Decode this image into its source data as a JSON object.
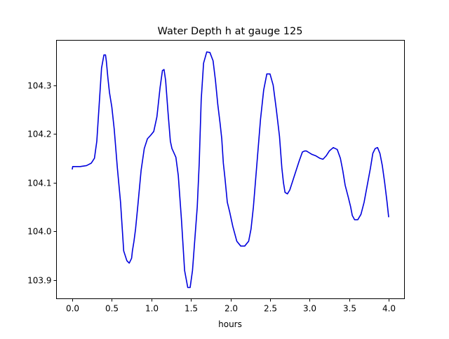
{
  "chart_data": {
    "type": "line",
    "title": "Water Depth h at gauge 125",
    "xlabel": "hours",
    "ylabel": "",
    "xlim": [
      -0.2,
      4.2
    ],
    "ylim": [
      103.862,
      104.392
    ],
    "xticks": [
      0.0,
      0.5,
      1.0,
      1.5,
      2.0,
      2.5,
      3.0,
      3.5,
      4.0
    ],
    "xtick_labels": [
      "0.0",
      "0.5",
      "1.0",
      "1.5",
      "2.0",
      "2.5",
      "3.0",
      "3.5",
      "4.0"
    ],
    "yticks": [
      103.9,
      104.0,
      104.1,
      104.2,
      104.3
    ],
    "ytick_labels": [
      "103.9",
      "104.0",
      "104.1",
      "104.2",
      "104.3"
    ],
    "grid": false,
    "legend": "none",
    "series": [
      {
        "color": "#0000dd",
        "x": [
          0.0,
          0.005,
          0.1,
          0.18,
          0.24,
          0.28,
          0.31,
          0.34,
          0.37,
          0.4,
          0.42,
          0.43,
          0.45,
          0.47,
          0.5,
          0.53,
          0.57,
          0.61,
          0.65,
          0.69,
          0.72,
          0.75,
          0.76,
          0.78,
          0.8,
          0.83,
          0.87,
          0.91,
          0.95,
          0.99,
          1.03,
          1.07,
          1.11,
          1.14,
          1.16,
          1.18,
          1.21,
          1.24,
          1.26,
          1.28,
          1.31,
          1.34,
          1.38,
          1.42,
          1.46,
          1.49,
          1.52,
          1.55,
          1.58,
          1.605,
          1.63,
          1.66,
          1.7,
          1.74,
          1.78,
          1.81,
          1.84,
          1.87,
          1.89,
          1.91,
          1.93,
          1.96,
          1.99,
          2.03,
          2.08,
          2.13,
          2.18,
          2.23,
          2.26,
          2.29,
          2.32,
          2.35,
          2.38,
          2.42,
          2.46,
          2.5,
          2.54,
          2.58,
          2.62,
          2.65,
          2.67,
          2.69,
          2.72,
          2.75,
          2.79,
          2.83,
          2.87,
          2.91,
          2.94,
          2.96,
          2.99,
          3.03,
          3.08,
          3.13,
          3.17,
          3.21,
          3.25,
          3.3,
          3.35,
          3.39,
          3.42,
          3.45,
          3.49,
          3.52,
          3.54,
          3.57,
          3.61,
          3.65,
          3.69,
          3.73,
          3.77,
          3.8,
          3.83,
          3.86,
          3.89,
          3.92,
          3.95,
          3.98,
          4.0
        ],
        "y": [
          104.128,
          104.133,
          104.133,
          104.135,
          104.14,
          104.15,
          104.185,
          104.26,
          104.335,
          104.362,
          104.362,
          104.35,
          104.315,
          104.285,
          104.255,
          104.21,
          104.13,
          104.06,
          103.96,
          103.94,
          103.935,
          103.945,
          103.96,
          103.98,
          104.005,
          104.055,
          104.125,
          104.17,
          104.19,
          104.197,
          104.205,
          104.235,
          104.295,
          104.33,
          104.332,
          104.31,
          104.245,
          104.185,
          104.17,
          104.163,
          104.152,
          104.115,
          104.025,
          103.92,
          103.885,
          103.885,
          103.92,
          103.985,
          104.05,
          104.14,
          104.27,
          104.345,
          104.368,
          104.367,
          104.35,
          104.31,
          104.26,
          104.22,
          104.19,
          104.14,
          104.11,
          104.06,
          104.04,
          104.01,
          103.98,
          103.97,
          103.97,
          103.98,
          104.005,
          104.05,
          104.11,
          104.17,
          104.23,
          104.29,
          104.323,
          104.323,
          104.3,
          104.25,
          104.195,
          104.13,
          104.1,
          104.08,
          104.077,
          104.085,
          104.105,
          104.125,
          104.145,
          104.163,
          104.165,
          104.165,
          104.162,
          104.158,
          104.155,
          104.15,
          104.148,
          104.155,
          104.165,
          104.172,
          104.168,
          104.15,
          104.125,
          104.095,
          104.07,
          104.05,
          104.033,
          104.024,
          104.024,
          104.035,
          104.06,
          104.095,
          104.13,
          104.16,
          104.17,
          104.172,
          104.16,
          104.135,
          104.1,
          104.06,
          104.03
        ]
      }
    ]
  }
}
